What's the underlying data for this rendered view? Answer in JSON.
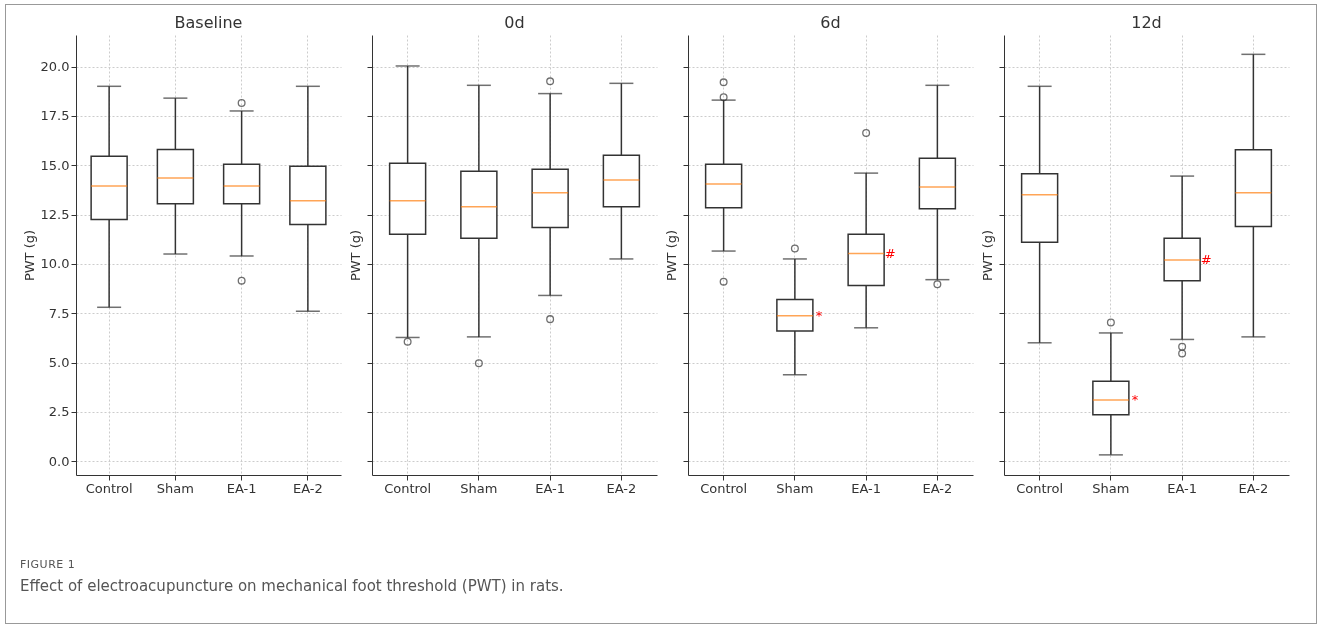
{
  "chart_data": [
    {
      "type": "box",
      "title": "Baseline",
      "ylabel": "PWT (g)",
      "categories": [
        "Control",
        "Sham",
        "EA-1",
        "EA-2"
      ],
      "ylim": [
        -0.7,
        21.6
      ],
      "yticks": [
        {
          "value": 0,
          "label": "0.0"
        },
        2.5,
        {
          "value": 5,
          "label": "5.0"
        },
        7.5,
        {
          "value": 10,
          "label": "10.0"
        },
        12.5,
        {
          "value": 15,
          "label": "15.0"
        },
        17.5,
        {
          "value": 20,
          "label": "20.0"
        }
      ],
      "grid": true,
      "boxes": [
        {
          "low": 7.8,
          "q1": 12.25,
          "median": 13.95,
          "q3": 15.45,
          "high": 19.0
        },
        {
          "low": 10.5,
          "q1": 13.05,
          "median": 14.35,
          "q3": 15.8,
          "high": 18.4
        },
        {
          "low": 10.4,
          "q1": 13.05,
          "median": 13.95,
          "q3": 15.05,
          "high": 17.75,
          "outliers": [
            18.15,
            9.15
          ]
        },
        {
          "low": 7.6,
          "q1": 12.0,
          "median": 13.2,
          "q3": 14.95,
          "high": 19.0
        }
      ],
      "annotations": [
        "FIGURE 1",
        "Effect of electroacupuncture on mechanical foot threshold (PWT) in rats."
      ]
    },
    {
      "type": "box",
      "title": "0d",
      "ylabel": "PWT (g)",
      "categories": [
        "Control",
        "Sham",
        "EA-1",
        "EA-2"
      ],
      "ylim": [
        -0.7,
        21.6
      ],
      "yticks": [
        0,
        2.5,
        5,
        7.5,
        10,
        12.5,
        15,
        17.5,
        20
      ],
      "grid": true,
      "tick_labels": "x",
      "boxes": [
        {
          "low": 6.27,
          "q1": 11.5,
          "median": 13.2,
          "q3": 15.1,
          "high": 20.03,
          "outliers": [
            6.05
          ]
        },
        {
          "low": 6.3,
          "q1": 11.3,
          "median": 12.9,
          "q3": 14.7,
          "high": 19.05,
          "outliers": [
            4.96
          ]
        },
        {
          "low": 8.4,
          "q1": 11.85,
          "median": 13.6,
          "q3": 14.8,
          "high": 18.63,
          "outliers": [
            19.25,
            7.2
          ]
        },
        {
          "low": 10.25,
          "q1": 12.9,
          "median": 14.25,
          "q3": 15.5,
          "high": 19.15
        }
      ]
    },
    {
      "type": "box",
      "title": "6d",
      "ylabel": "PWT (g)",
      "categories": [
        "Control",
        "Sham",
        "EA-1",
        "EA-2"
      ],
      "ylim": [
        -0.7,
        21.6
      ],
      "yticks": [
        0,
        2.5,
        5,
        7.5,
        10,
        12.5,
        15,
        17.5,
        20
      ],
      "grid": true,
      "tick_labels": "x",
      "boxes": [
        {
          "low": 10.65,
          "q1": 12.85,
          "median": 14.05,
          "q3": 15.05,
          "high": 18.3,
          "outliers": [
            19.2,
            18.45,
            9.1
          ]
        },
        {
          "low": 4.38,
          "q1": 6.6,
          "median": 7.37,
          "q3": 8.2,
          "high": 10.25,
          "outliers": [
            10.78
          ]
        },
        {
          "low": 6.76,
          "q1": 8.9,
          "median": 10.52,
          "q3": 11.5,
          "high": 14.6,
          "outliers": [
            16.63
          ]
        },
        {
          "low": 9.2,
          "q1": 12.8,
          "median": 13.9,
          "q3": 15.35,
          "high": 19.05,
          "outliers": [
            8.97
          ]
        }
      ],
      "annotations": [
        {
          "text": "*",
          "x": "Sham",
          "y": 7.37
        },
        {
          "text": "#",
          "x": "EA-1",
          "y": 10.52
        }
      ]
    },
    {
      "type": "box",
      "title": "12d",
      "ylabel": "PWT (g)",
      "categories": [
        "Control",
        "Sham",
        "EA-1",
        "EA-2"
      ],
      "ylim": [
        -0.7,
        21.6
      ],
      "yticks": [
        0,
        2.5,
        5,
        7.5,
        10,
        12.5,
        15,
        17.5,
        20
      ],
      "grid": true,
      "tick_labels": "x",
      "boxes": [
        {
          "low": 6.0,
          "q1": 11.1,
          "median": 13.5,
          "q3": 14.57,
          "high": 19.0
        },
        {
          "low": 0.32,
          "q1": 2.35,
          "median": 3.1,
          "q3": 4.05,
          "high": 6.5,
          "outliers": [
            7.03
          ]
        },
        {
          "low": 6.17,
          "q1": 9.15,
          "median": 10.2,
          "q3": 11.3,
          "high": 14.45,
          "outliers": [
            5.8,
            5.46
          ]
        },
        {
          "low": 6.3,
          "q1": 11.9,
          "median": 13.6,
          "q3": 15.78,
          "high": 20.62
        }
      ],
      "annotations": [
        {
          "text": "*",
          "x": "Sham",
          "y": 3.1
        },
        {
          "text": "#",
          "x": "EA-1",
          "y": 10.2
        }
      ]
    }
  ]
}
